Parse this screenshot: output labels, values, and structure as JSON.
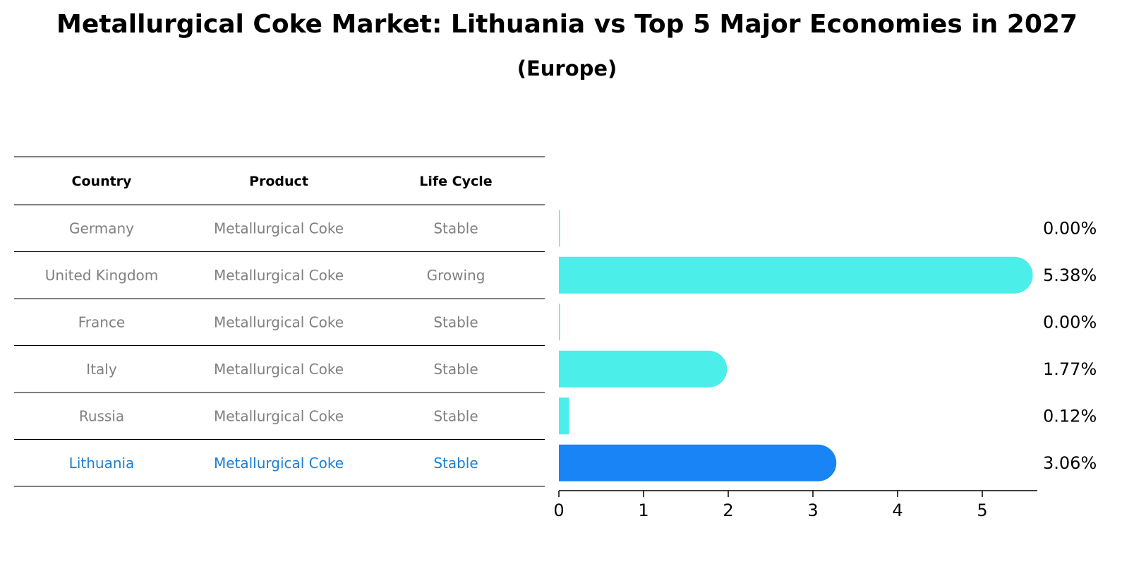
{
  "title": "Metallurgical Coke Market: Lithuania vs Top 5 Major Economies in 2027",
  "subtitle": "(Europe)",
  "colors": {
    "bar": "#4CEEEA",
    "highlight": "#1884F5",
    "muted_text": "#808080",
    "highlight_text": "#1A7FD4",
    "rule": "#000000"
  },
  "table": {
    "headers": [
      "Country",
      "Product",
      "Life Cycle"
    ],
    "rows": [
      {
        "country": "Germany",
        "product": "Metallurgical Coke",
        "life_cycle": "Stable",
        "highlight": false
      },
      {
        "country": "United Kingdom",
        "product": "Metallurgical Coke",
        "life_cycle": "Growing",
        "highlight": false
      },
      {
        "country": "France",
        "product": "Metallurgical Coke",
        "life_cycle": "Stable",
        "highlight": false
      },
      {
        "country": "Italy",
        "product": "Metallurgical Coke",
        "life_cycle": "Stable",
        "highlight": false
      },
      {
        "country": "Russia",
        "product": "Metallurgical Coke",
        "life_cycle": "Stable",
        "highlight": false
      },
      {
        "country": "Lithuania",
        "product": "Metallurgical Coke",
        "life_cycle": "Stable",
        "highlight": true
      }
    ]
  },
  "chart_data": {
    "type": "bar",
    "orientation": "horizontal",
    "categories": [
      "Germany",
      "United Kingdom",
      "France",
      "Italy",
      "Russia",
      "Lithuania"
    ],
    "values": [
      0.0,
      5.38,
      0.0,
      1.77,
      0.12,
      3.06
    ],
    "value_labels": [
      "0.00%",
      "5.38%",
      "0.00%",
      "1.77%",
      "0.12%",
      "3.06%"
    ],
    "highlight_category": "Lithuania",
    "xlim": [
      0,
      5.65
    ],
    "xticks": [
      0,
      1,
      2,
      3,
      4,
      5
    ],
    "xlabel": "",
    "ylabel": "",
    "grid": false
  }
}
